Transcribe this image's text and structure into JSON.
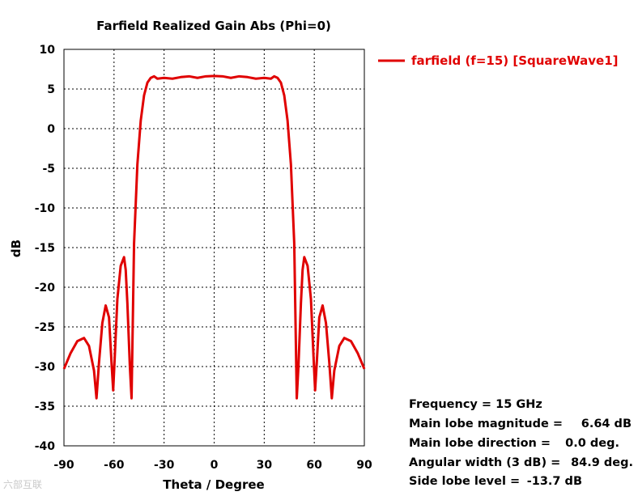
{
  "chart_data": {
    "type": "line",
    "title": "Farfield Realized Gain Abs (Phi=0)",
    "xlabel": "Theta / Degree",
    "ylabel": "dB",
    "xlim": [
      -90,
      90
    ],
    "ylim": [
      -40,
      10
    ],
    "x_ticks": [
      -90,
      -60,
      -30,
      0,
      30,
      60,
      90
    ],
    "y_ticks": [
      10,
      5,
      0,
      -5,
      -10,
      -15,
      -20,
      -25,
      -30,
      -35,
      -40
    ],
    "grid": true,
    "legend_position": "top-right",
    "series": [
      {
        "name": "farfield (f=15) [SquareWave1]",
        "color": "#e00000",
        "x": [
          -90,
          -86,
          -82,
          -78,
          -75,
          -72,
          -70.5,
          -69,
          -67,
          -65,
          -63,
          -61.5,
          -60.5,
          -59.5,
          -58,
          -56,
          -54,
          -53,
          -52,
          -50.5,
          -49.5,
          -48,
          -46,
          -44,
          -42,
          -40,
          -38,
          -36,
          -34,
          -30,
          -25,
          -20,
          -15,
          -10,
          -5,
          0,
          5,
          10,
          15,
          20,
          25,
          30,
          34,
          36,
          38,
          40,
          42,
          44,
          46,
          48,
          49.5,
          50.5,
          52,
          53,
          54,
          56,
          58,
          59.5,
          60.5,
          61.5,
          63,
          65,
          67,
          69,
          70.5,
          72,
          75,
          78,
          82,
          86,
          90
        ],
        "y": [
          -30.3,
          -28.3,
          -26.8,
          -26.4,
          -27.4,
          -30.5,
          -34,
          -29.5,
          -24.5,
          -22.3,
          -23.8,
          -29.5,
          -33,
          -28.5,
          -21.5,
          -17.3,
          -16.2,
          -17.8,
          -22,
          -30,
          -34,
          -14.5,
          -4.5,
          1.0,
          4.2,
          5.8,
          6.4,
          6.6,
          6.3,
          6.4,
          6.3,
          6.5,
          6.6,
          6.4,
          6.6,
          6.64,
          6.6,
          6.4,
          6.6,
          6.5,
          6.3,
          6.4,
          6.3,
          6.6,
          6.4,
          5.8,
          4.2,
          1.0,
          -4.5,
          -14.5,
          -34,
          -30,
          -22,
          -17.8,
          -16.2,
          -17.3,
          -21.5,
          -28.5,
          -33,
          -29.5,
          -23.8,
          -22.3,
          -24.5,
          -29.5,
          -34,
          -30.5,
          -27.4,
          -26.4,
          -26.8,
          -28.3,
          -30.3
        ]
      }
    ]
  },
  "info": {
    "frequency": "Frequency = 15 GHz",
    "main_lobe_magnitude_label": "Main lobe magnitude =",
    "main_lobe_magnitude_value": "6.64 dB",
    "main_lobe_direction_label": "Main lobe direction =",
    "main_lobe_direction_value": "0.0 deg.",
    "angular_width_label": "Angular width (3 dB) =",
    "angular_width_value": "84.9 deg.",
    "side_lobe_label": "Side lobe level =",
    "side_lobe_value": "-13.7 dB"
  },
  "watermark": "六部互联"
}
